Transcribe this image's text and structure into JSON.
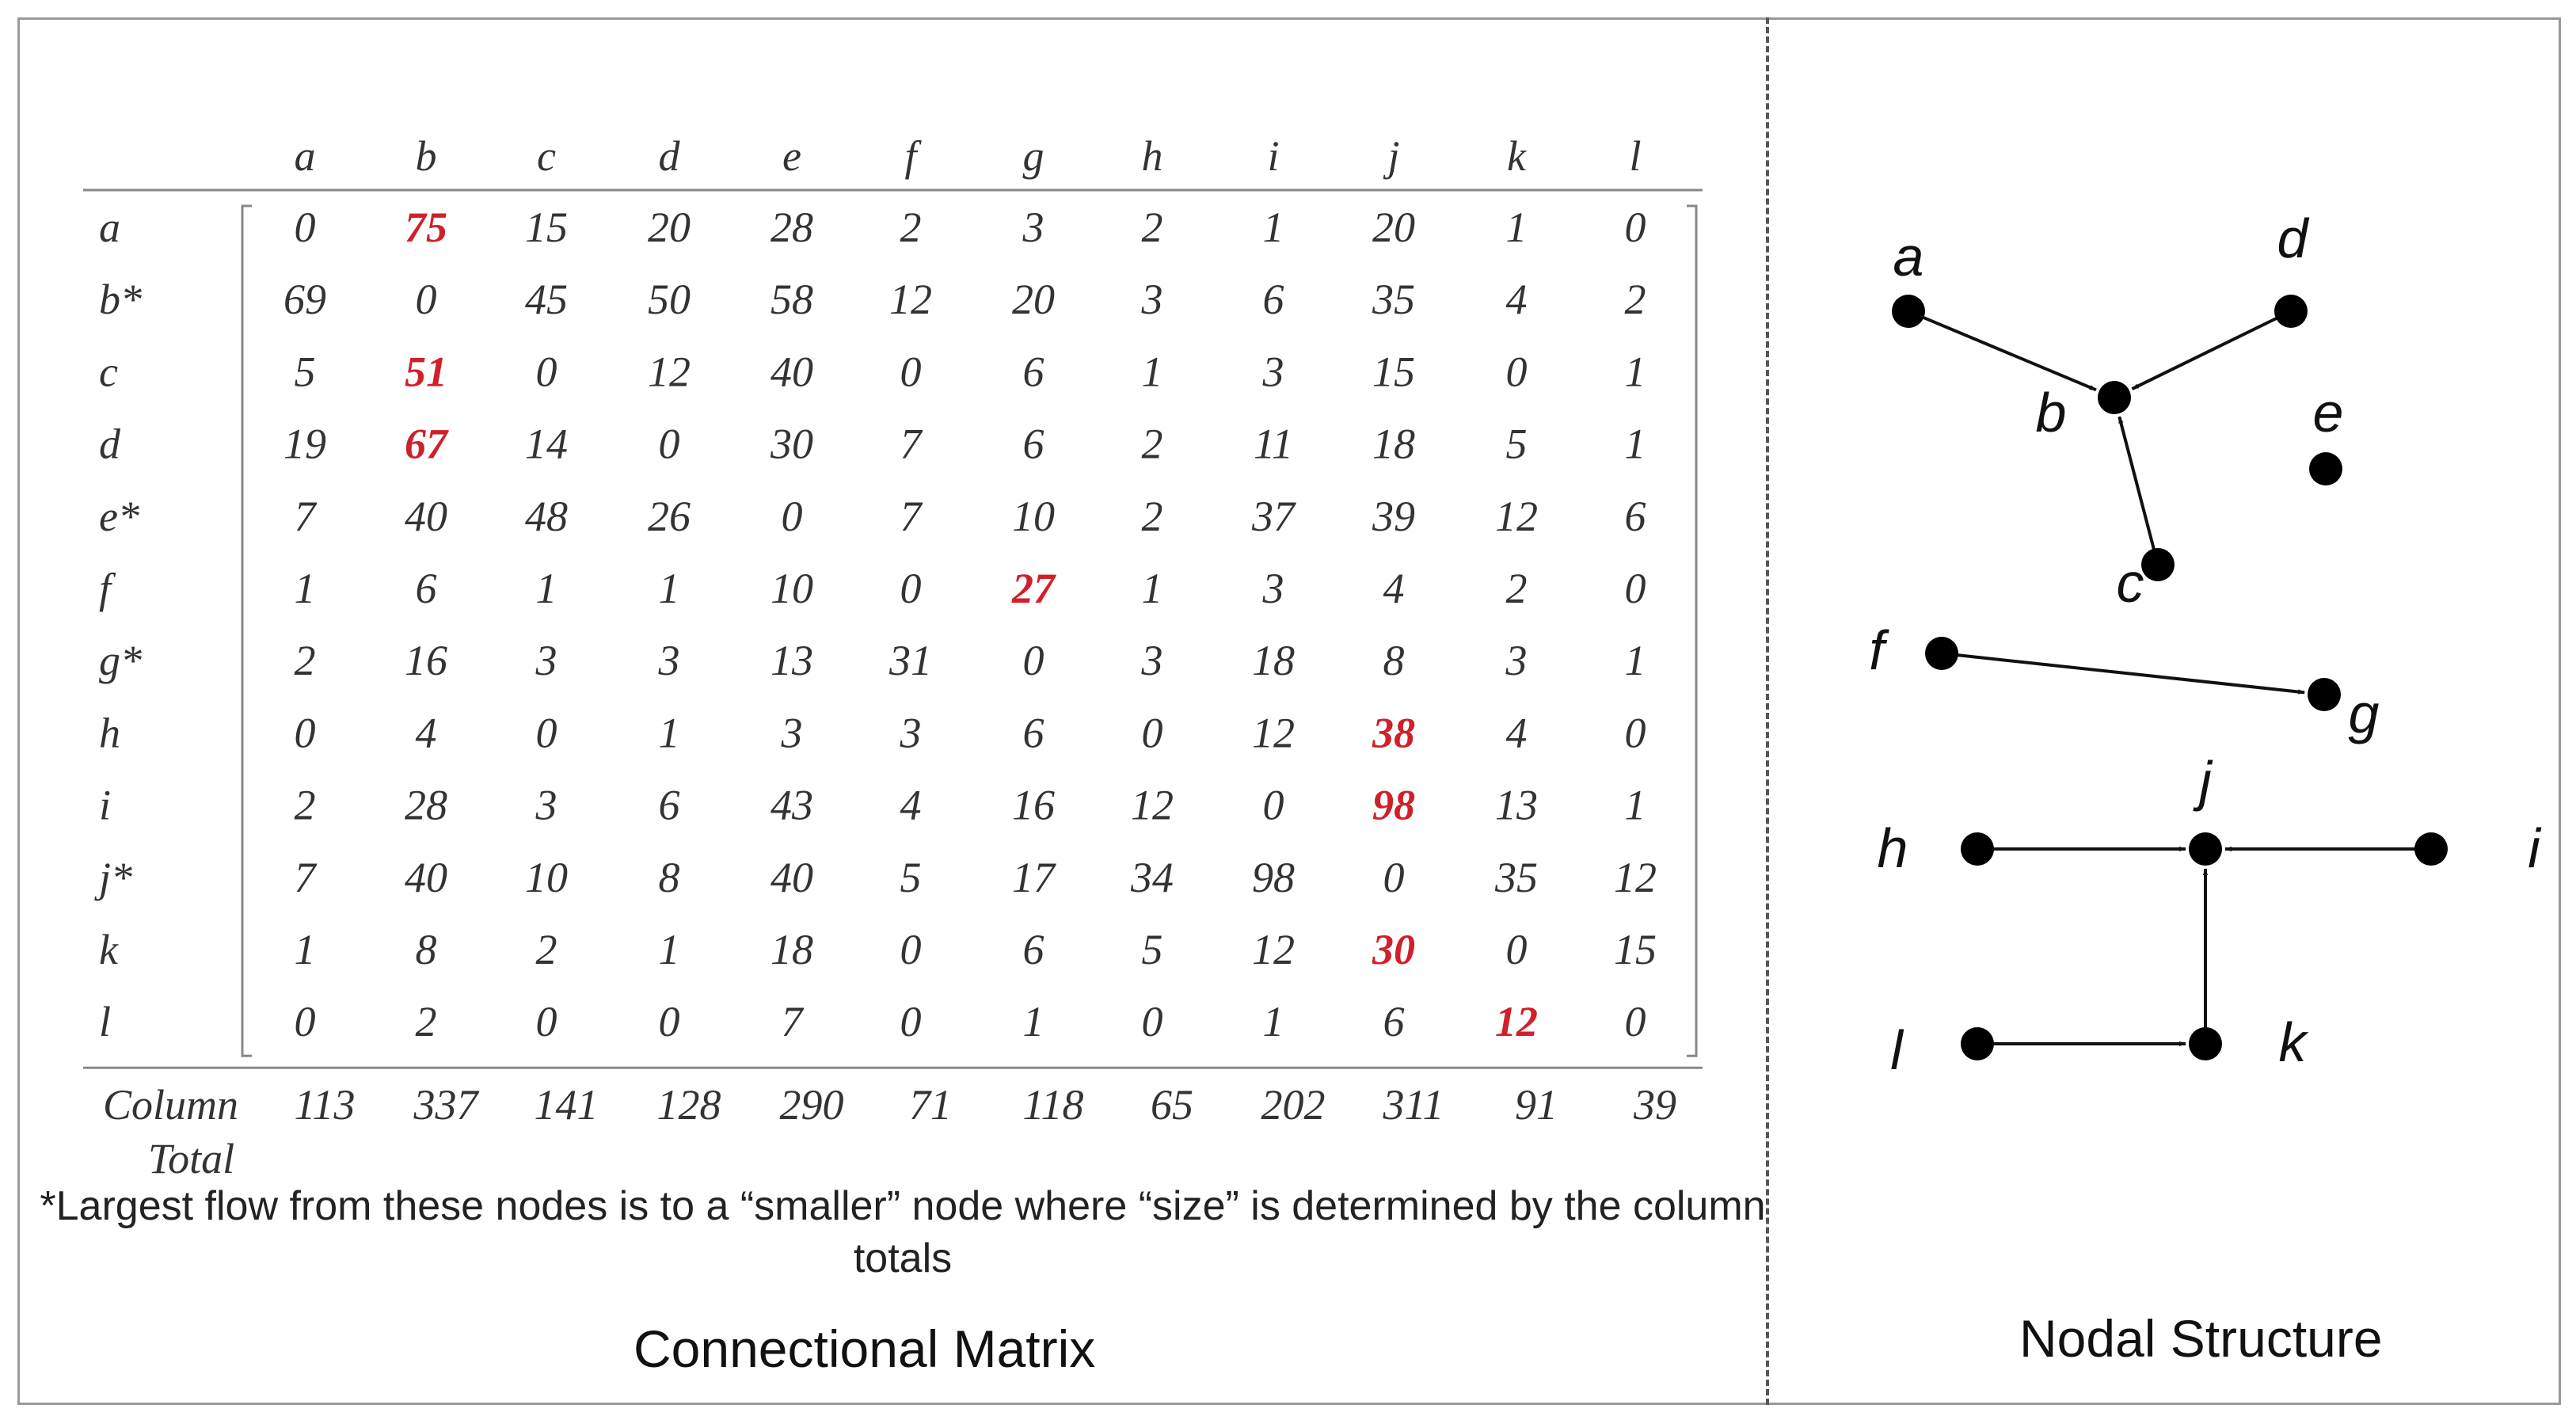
{
  "matrix": {
    "columns": [
      "a",
      "b",
      "c",
      "d",
      "e",
      "f",
      "g",
      "h",
      "i",
      "j",
      "k",
      "l"
    ],
    "rows": [
      {
        "label": "a",
        "values": [
          "0",
          "75",
          "15",
          "20",
          "28",
          "2",
          "3",
          "2",
          "1",
          "20",
          "1",
          "0"
        ],
        "highlight": [
          1
        ]
      },
      {
        "label": "b*",
        "values": [
          "69",
          "0",
          "45",
          "50",
          "58",
          "12",
          "20",
          "3",
          "6",
          "35",
          "4",
          "2"
        ],
        "highlight": []
      },
      {
        "label": "c",
        "values": [
          "5",
          "51",
          "0",
          "12",
          "40",
          "0",
          "6",
          "1",
          "3",
          "15",
          "0",
          "1"
        ],
        "highlight": [
          1
        ]
      },
      {
        "label": "d",
        "values": [
          "19",
          "67",
          "14",
          "0",
          "30",
          "7",
          "6",
          "2",
          "11",
          "18",
          "5",
          "1"
        ],
        "highlight": [
          1
        ]
      },
      {
        "label": "e*",
        "values": [
          "7",
          "40",
          "48",
          "26",
          "0",
          "7",
          "10",
          "2",
          "37",
          "39",
          "12",
          "6"
        ],
        "highlight": []
      },
      {
        "label": "f",
        "values": [
          "1",
          "6",
          "1",
          "1",
          "10",
          "0",
          "27",
          "1",
          "3",
          "4",
          "2",
          "0"
        ],
        "highlight": [
          6
        ]
      },
      {
        "label": "g*",
        "values": [
          "2",
          "16",
          "3",
          "3",
          "13",
          "31",
          "0",
          "3",
          "18",
          "8",
          "3",
          "1"
        ],
        "highlight": []
      },
      {
        "label": "h",
        "values": [
          "0",
          "4",
          "0",
          "1",
          "3",
          "3",
          "6",
          "0",
          "12",
          "38",
          "4",
          "0"
        ],
        "highlight": [
          9
        ]
      },
      {
        "label": "i",
        "values": [
          "2",
          "28",
          "3",
          "6",
          "43",
          "4",
          "16",
          "12",
          "0",
          "98",
          "13",
          "1"
        ],
        "highlight": [
          9
        ]
      },
      {
        "label": "j*",
        "values": [
          "7",
          "40",
          "10",
          "8",
          "40",
          "5",
          "17",
          "34",
          "98",
          "0",
          "35",
          "12"
        ],
        "highlight": []
      },
      {
        "label": "k",
        "values": [
          "1",
          "8",
          "2",
          "1",
          "18",
          "0",
          "6",
          "5",
          "12",
          "30",
          "0",
          "15"
        ],
        "highlight": [
          9
        ]
      },
      {
        "label": "l",
        "values": [
          "0",
          "2",
          "0",
          "0",
          "7",
          "0",
          "1",
          "0",
          "1",
          "6",
          "12",
          "0"
        ],
        "highlight": [
          10
        ]
      }
    ],
    "totals_label_line1": "Column",
    "totals_label_line2": "Total",
    "totals": [
      "113",
      "337",
      "141",
      "128",
      "290",
      "71",
      "118",
      "65",
      "202",
      "311",
      "91",
      "39"
    ]
  },
  "footnote": "*Largest flow from these nodes is to a “smaller” node where “size” is determined by the column totals",
  "left_title": "Connectional Matrix",
  "right_title": "Nodal Structure",
  "colors": {
    "highlight": "#d0202a",
    "text": "#333333",
    "frame": "#999999"
  },
  "nodal": {
    "nodes": [
      {
        "id": "a",
        "label": "a"
      },
      {
        "id": "b",
        "label": "b"
      },
      {
        "id": "c",
        "label": "c"
      },
      {
        "id": "d",
        "label": "d"
      },
      {
        "id": "e",
        "label": "e"
      },
      {
        "id": "f",
        "label": "f"
      },
      {
        "id": "g",
        "label": "g"
      },
      {
        "id": "h",
        "label": "h"
      },
      {
        "id": "i",
        "label": "i"
      },
      {
        "id": "j",
        "label": "j"
      },
      {
        "id": "k",
        "label": "k"
      },
      {
        "id": "l",
        "label": "l"
      }
    ],
    "edges": [
      {
        "from": "a",
        "to": "b"
      },
      {
        "from": "d",
        "to": "b"
      },
      {
        "from": "c",
        "to": "b"
      },
      {
        "from": "f",
        "to": "g"
      },
      {
        "from": "h",
        "to": "j"
      },
      {
        "from": "i",
        "to": "j"
      },
      {
        "from": "k",
        "to": "j"
      },
      {
        "from": "l",
        "to": "k"
      }
    ]
  }
}
